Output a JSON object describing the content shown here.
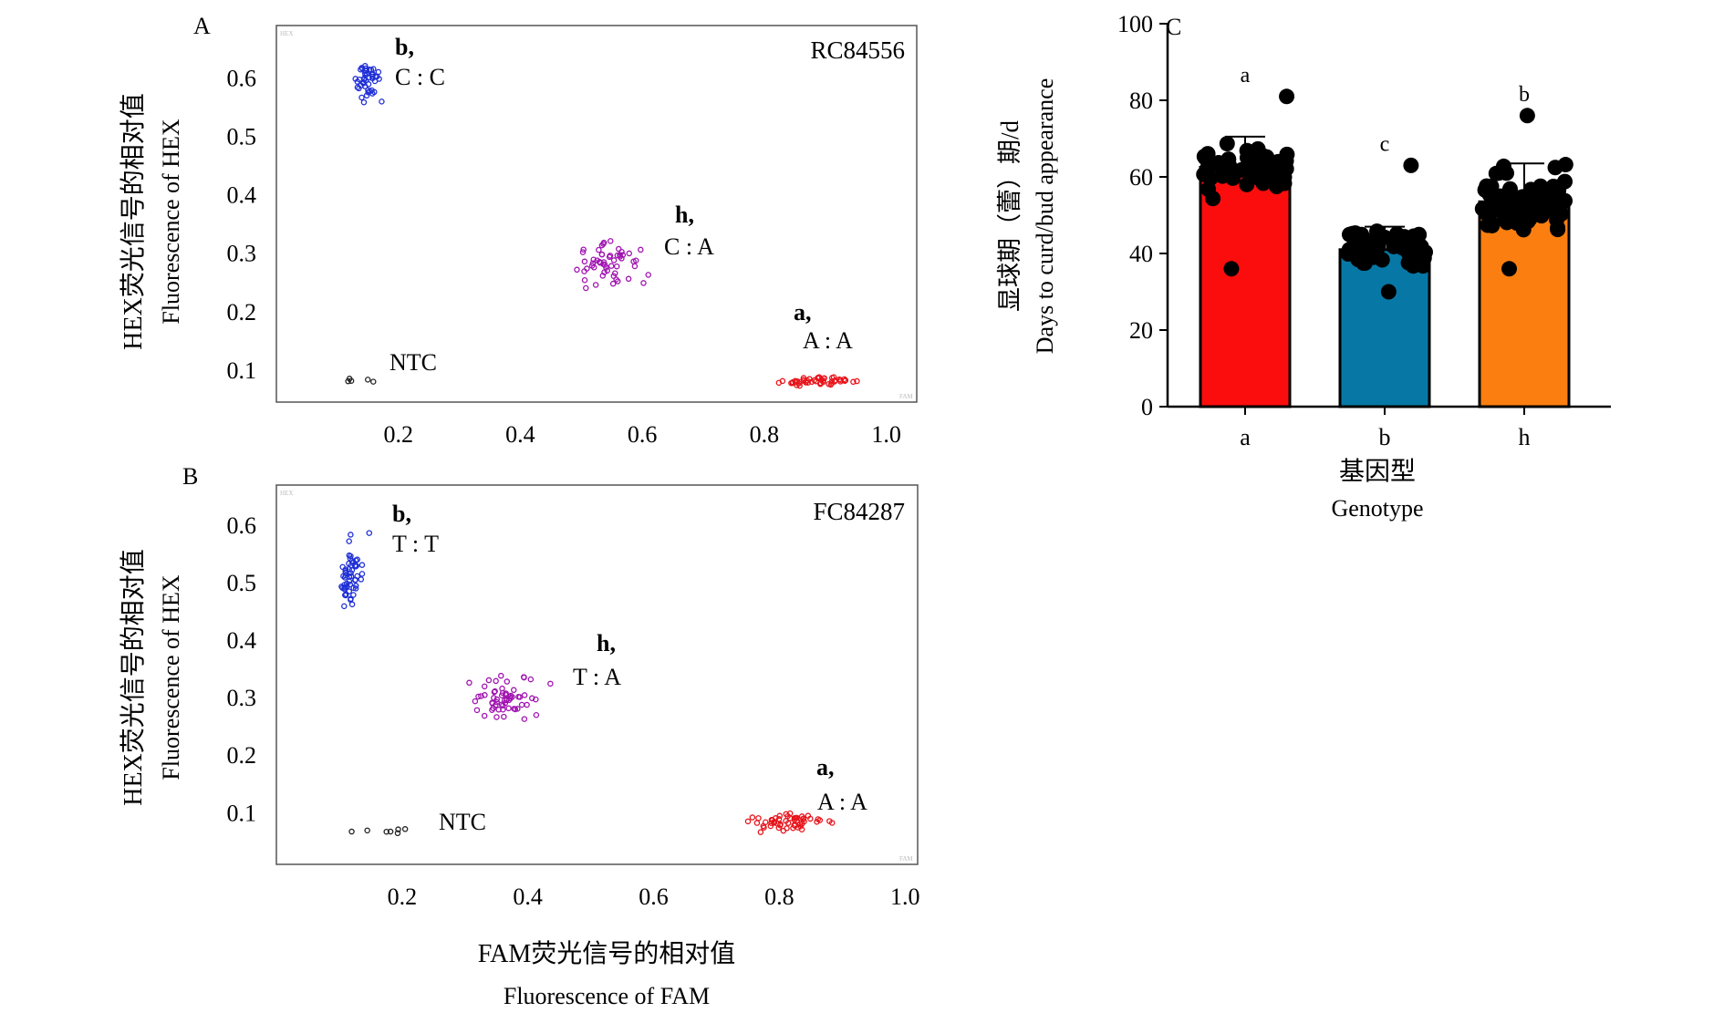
{
  "figure": {
    "panel_a_label": "A",
    "panel_b_label": "B",
    "panel_c_label": "C",
    "shared_y_label_cn": "HEX荧光信号的相对值",
    "shared_y_label_en": "Fluorescence of HEX",
    "shared_x_label_cn": "FAM荧光信号的相对值",
    "shared_x_label_en": "Fluorescence of FAM",
    "corner_y_mark": "HEX",
    "corner_x_mark": "FAM"
  },
  "chart_data": [
    {
      "type": "scatter",
      "panel": "A",
      "marker": "RC84556",
      "xlim": [
        0,
        1.05
      ],
      "ylim": [
        0.045,
        0.69
      ],
      "x_ticks": [
        0.2,
        0.4,
        0.6,
        0.8,
        1.0
      ],
      "x_tick_labels": [
        "0.2",
        "0.4",
        "0.6",
        "0.8",
        "1.0"
      ],
      "y_ticks": [
        0.1,
        0.2,
        0.3,
        0.4,
        0.5,
        0.6
      ],
      "y_tick_labels": [
        "0.1",
        "0.2",
        "0.3",
        "0.4",
        "0.5",
        "0.6"
      ],
      "clusters": [
        {
          "label": "b,",
          "genotype": "C : C",
          "color": "#1f2fd6",
          "count": 45,
          "x_range": [
            0.12,
            0.18
          ],
          "y_range": [
            0.55,
            0.64
          ]
        },
        {
          "label": "h,",
          "genotype": "C : A",
          "color": "#a012b0",
          "count": 55,
          "x_range": [
            0.45,
            0.63
          ],
          "y_range": [
            0.23,
            0.34
          ]
        },
        {
          "label": "a,",
          "genotype": "A : A",
          "color": "#e8141b",
          "count": 50,
          "x_range": [
            0.79,
            0.98
          ],
          "y_range": [
            0.07,
            0.09
          ]
        },
        {
          "label": "NTC",
          "genotype": "",
          "color": "#222222",
          "count": 5,
          "x_range": [
            0.08,
            0.18
          ],
          "y_range": [
            0.075,
            0.09
          ]
        }
      ]
    },
    {
      "type": "scatter",
      "panel": "B",
      "marker": "FC84287",
      "xlim": [
        0,
        1.02
      ],
      "ylim": [
        0.01,
        0.67
      ],
      "x_ticks": [
        0.2,
        0.4,
        0.6,
        0.8,
        1.0
      ],
      "x_tick_labels": [
        "0.2",
        "0.4",
        "0.6",
        "0.8",
        "1.0"
      ],
      "y_ticks": [
        0.1,
        0.2,
        0.3,
        0.4,
        0.5,
        0.6
      ],
      "y_tick_labels": [
        "0.1",
        "0.2",
        "0.3",
        "0.4",
        "0.5",
        "0.6"
      ],
      "clusters": [
        {
          "label": "b,",
          "genotype": "T : T",
          "color": "#1f2fd6",
          "count": 55,
          "x_range": [
            0.09,
            0.15
          ],
          "y_range": [
            0.43,
            0.6
          ]
        },
        {
          "label": "h,",
          "genotype": "T : A",
          "color": "#a012b0",
          "count": 60,
          "x_range": [
            0.29,
            0.45
          ],
          "y_range": [
            0.24,
            0.35
          ]
        },
        {
          "label": "a,",
          "genotype": "A : A",
          "color": "#e8141b",
          "count": 55,
          "x_range": [
            0.72,
            0.92
          ],
          "y_range": [
            0.055,
            0.11
          ]
        },
        {
          "label": "NTC",
          "genotype": "",
          "color": "#222222",
          "count": 7,
          "x_range": [
            0.11,
            0.23
          ],
          "y_range": [
            0.06,
            0.075
          ]
        }
      ]
    },
    {
      "type": "bar",
      "panel": "C",
      "categories": [
        "a",
        "b",
        "h"
      ],
      "values": [
        62.5,
        41,
        53.5
      ],
      "error": [
        8,
        6,
        10
      ],
      "bar_colors": [
        "#fb0d0d",
        "#0778a5",
        "#fb7f10"
      ],
      "significance": [
        "a",
        "c",
        "b"
      ],
      "ylim": [
        0,
        100
      ],
      "y_ticks": [
        0,
        20,
        40,
        60,
        80,
        100
      ],
      "y_tick_labels": [
        "0",
        "20",
        "40",
        "60",
        "80",
        "100"
      ],
      "ylabel_cn": "显球期（蕾）期/d",
      "ylabel_en": "Days to curd/bud appearance",
      "xlabel_cn": "基因型",
      "xlabel_en": "Genotype",
      "point_ranges": [
        [
          36,
          81
        ],
        [
          30,
          63
        ],
        [
          36,
          76
        ]
      ],
      "point_counts": [
        55,
        60,
        75
      ]
    }
  ]
}
